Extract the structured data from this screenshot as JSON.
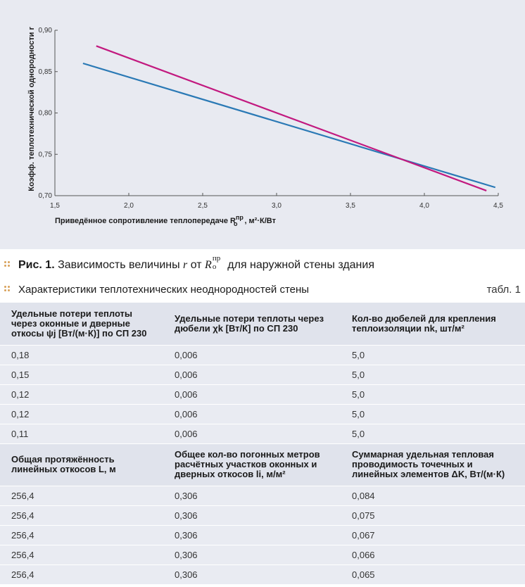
{
  "chart_data": {
    "type": "line",
    "xlabel": "Приведённое сопротивление теплопередаче R",
    "xlabel_sub": "о",
    "xlabel_sup": "пр",
    "xlabel_units": ", м²·К/Вт",
    "ylabel": "Коэфф. теплотехнической однородности r",
    "x_ticks": [
      "1,5",
      "2,0",
      "2,5",
      "3,0",
      "3,5",
      "4,0",
      "4,5"
    ],
    "y_ticks": [
      "0,90",
      "0,85",
      "0,80",
      "0,75",
      "0,70"
    ],
    "xlim": [
      1.5,
      4.5
    ],
    "ylim": [
      0.7,
      0.9
    ],
    "grid": false,
    "series": [
      {
        "color": "#2a79b5",
        "x": [
          1.69,
          4.48
        ],
        "y": [
          0.86,
          0.71
        ]
      },
      {
        "color": "#c2197f",
        "x": [
          1.78,
          4.42
        ],
        "y": [
          0.881,
          0.706
        ]
      }
    ]
  },
  "figure_caption": {
    "label": "Рис. 1.",
    "text_before": " Зависимость величины ",
    "var": "r",
    "text_mid": " от ",
    "r_var": "R",
    "r_sup": "пр",
    "r_sub": "о",
    "text_after": " для наружной стены здания"
  },
  "table": {
    "title": "Характеристики теплотехнических неоднородностей стены",
    "number": "табл. 1",
    "header1": [
      "Удельные потери теплоты через оконные и дверные откосы ψj [Вт/(м·К)] по СП 230",
      "Удельные потери теплоты через дюбели χk [Вт/К] по СП 230",
      "Кол-во дюбелей для крепления теплоизоляции nk, шт/м²"
    ],
    "rows1": [
      [
        "0,18",
        "0,006",
        "5,0"
      ],
      [
        "0,15",
        "0,006",
        "5,0"
      ],
      [
        "0,12",
        "0,006",
        "5,0"
      ],
      [
        "0,12",
        "0,006",
        "5,0"
      ],
      [
        "0,11",
        "0,006",
        "5,0"
      ]
    ],
    "header2": [
      "Общая протяжённость линейных откосов L, м",
      "Общее кол-во погонных метров расчётных участков оконных и дверных откосов li, м/м²",
      "Суммарная удельная тепловая проводимость точечных и линейных элементов ΔK, Вт/(м·К)"
    ],
    "rows2": [
      [
        "256,4",
        "0,306",
        "0,084"
      ],
      [
        "256,4",
        "0,306",
        "0,075"
      ],
      [
        "256,4",
        "0,306",
        "0,067"
      ],
      [
        "256,4",
        "0,306",
        "0,066"
      ],
      [
        "256,4",
        "0,306",
        "0,065"
      ]
    ]
  }
}
